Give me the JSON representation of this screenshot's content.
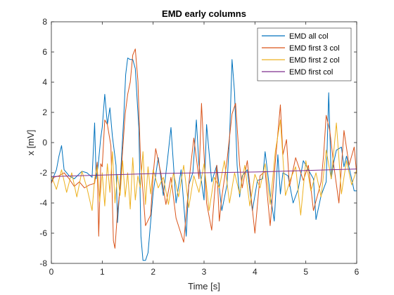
{
  "chart_data": {
    "type": "line",
    "title": "EMD early columns",
    "xlabel": "Time [s]",
    "ylabel": "x [mV]",
    "xlim": [
      0,
      6
    ],
    "ylim": [
      -8,
      8
    ],
    "xticks": [
      0,
      1,
      2,
      3,
      4,
      5,
      6
    ],
    "yticks": [
      -8,
      -6,
      -4,
      -2,
      0,
      2,
      4,
      6,
      8
    ],
    "xtick_labels": [
      "0",
      "1",
      "2",
      "3",
      "4",
      "5",
      "6"
    ],
    "ytick_labels": [
      "-8",
      "-6",
      "-4",
      "-2",
      "0",
      "2",
      "4",
      "6",
      "8"
    ],
    "grid": false,
    "legend_position": "top-right",
    "series": [
      {
        "name": "EMD all col",
        "color": "#0072BD",
        "x": [
          0,
          0.1,
          0.15,
          0.2,
          0.25,
          0.35,
          0.45,
          0.6,
          0.7,
          0.8,
          0.85,
          0.88,
          0.92,
          0.97,
          1.0,
          1.05,
          1.1,
          1.15,
          1.2,
          1.27,
          1.3,
          1.35,
          1.42,
          1.46,
          1.5,
          1.55,
          1.6,
          1.65,
          1.72,
          1.76,
          1.8,
          1.85,
          1.9,
          2.0,
          2.1,
          2.2,
          2.28,
          2.35,
          2.45,
          2.55,
          2.65,
          2.7,
          2.78,
          2.85,
          2.9,
          2.95,
          3.0,
          3.05,
          3.15,
          3.25,
          3.35,
          3.45,
          3.5,
          3.55,
          3.6,
          3.65,
          3.7,
          3.75,
          3.85,
          3.95,
          4.05,
          4.15,
          4.2,
          4.3,
          4.38,
          4.45,
          4.5,
          4.55,
          4.65,
          4.75,
          4.85,
          4.95,
          5.05,
          5.15,
          5.2,
          5.3,
          5.4,
          5.45,
          5.5,
          5.55,
          5.6,
          5.7,
          5.75,
          5.8,
          5.9,
          5.95,
          6.0
        ],
        "y": [
          -2.6,
          -1.8,
          -0.9,
          -0.2,
          -1.8,
          -2.2,
          -2.4,
          -1.9,
          -2.0,
          -2.3,
          1.3,
          -2.4,
          -1.5,
          0.3,
          1.0,
          3.2,
          1.2,
          2.3,
          0.4,
          -1.5,
          -5.3,
          -2.7,
          1.5,
          4.5,
          5.6,
          5.5,
          5.5,
          4.9,
          0.9,
          -6.2,
          -7.8,
          -7.8,
          -7.3,
          -3.3,
          -1.0,
          -3.5,
          -1.2,
          1.0,
          -4.0,
          -1.8,
          -6.2,
          -2.8,
          -2.0,
          1.5,
          -1.5,
          -2.6,
          -3.8,
          1.2,
          -2.6,
          -1.5,
          -4.5,
          -2.8,
          0.2,
          5.5,
          3.3,
          -1.5,
          -3.6,
          -2.2,
          -1.8,
          -4.5,
          -2.5,
          -2.4,
          -0.6,
          -3.4,
          -5.2,
          -0.8,
          -3.4,
          -2.0,
          -2.2,
          -4.0,
          -3.1,
          -1.2,
          -1.8,
          -2.4,
          -5.1,
          -3.5,
          -2.6,
          3.3,
          -2.4,
          -1.3,
          -0.5,
          -0.3,
          -1.6,
          -0.9,
          -2.4,
          -3.2,
          -3.2
        ]
      },
      {
        "name": "EMD first 3 col",
        "color": "#D95319",
        "x": [
          0,
          0.05,
          0.15,
          0.25,
          0.35,
          0.45,
          0.55,
          0.65,
          0.75,
          0.85,
          0.9,
          0.93,
          0.97,
          1.0,
          1.05,
          1.1,
          1.17,
          1.22,
          1.25,
          1.3,
          1.35,
          1.4,
          1.45,
          1.5,
          1.55,
          1.6,
          1.65,
          1.7,
          1.75,
          1.85,
          1.95,
          2.0,
          2.05,
          2.15,
          2.25,
          2.35,
          2.45,
          2.6,
          2.72,
          2.8,
          2.9,
          2.95,
          3.0,
          3.05,
          3.15,
          3.25,
          3.3,
          3.35,
          3.45,
          3.55,
          3.62,
          3.7,
          3.75,
          3.85,
          4.0,
          4.1,
          4.2,
          4.3,
          4.4,
          4.5,
          4.55,
          4.62,
          4.68,
          4.8,
          4.95,
          5.05,
          5.15,
          5.3,
          5.35,
          5.4,
          5.47,
          5.55,
          5.65,
          5.75,
          5.85,
          5.95,
          6.0
        ],
        "y": [
          -2.7,
          -2.3,
          -2.2,
          -2.0,
          -2.4,
          -2.9,
          -2.6,
          -3.0,
          -2.8,
          -2.7,
          -1.3,
          -6.2,
          -1.4,
          -1.6,
          1.5,
          1.2,
          -0.2,
          -6.5,
          -7.0,
          -4.6,
          -3.0,
          -0.5,
          1.9,
          3.2,
          4.0,
          5.8,
          6.2,
          4.1,
          -1.0,
          -5.5,
          -4.8,
          -2.1,
          -0.4,
          -2.0,
          -4.1,
          -2.3,
          -5.0,
          -6.6,
          -2.1,
          0.3,
          -2.4,
          2.6,
          -0.8,
          -4.0,
          -5.8,
          -1.5,
          -5.2,
          -3.6,
          -1.2,
          1.9,
          2.6,
          -1.5,
          -3.0,
          -1.2,
          -6.0,
          -2.2,
          -1.9,
          -5.5,
          -1.3,
          2.5,
          -0.8,
          0.2,
          -2.9,
          -1.0,
          -2.5,
          -1.5,
          -4.5,
          -2.6,
          -0.8,
          1.8,
          0.8,
          -1.5,
          -4.0,
          0.8,
          -1.5,
          -0.3,
          -2.1
        ]
      },
      {
        "name": "EMD first 2 col",
        "color": "#EDB120",
        "x": [
          0,
          0.1,
          0.2,
          0.3,
          0.4,
          0.5,
          0.6,
          0.7,
          0.8,
          0.85,
          0.9,
          0.95,
          1.0,
          1.05,
          1.1,
          1.15,
          1.2,
          1.25,
          1.3,
          1.35,
          1.4,
          1.45,
          1.5,
          1.55,
          1.6,
          1.65,
          1.7,
          1.75,
          1.8,
          1.85,
          1.9,
          1.95,
          2.0,
          2.1,
          2.2,
          2.3,
          2.4,
          2.5,
          2.6,
          2.7,
          2.8,
          2.9,
          3.0,
          3.1,
          3.2,
          3.3,
          3.4,
          3.5,
          3.6,
          3.7,
          3.8,
          3.9,
          4.0,
          4.1,
          4.2,
          4.3,
          4.4,
          4.5,
          4.6,
          4.7,
          4.8,
          4.9,
          5.0,
          5.1,
          5.2,
          5.3,
          5.4,
          5.5,
          5.6,
          5.7,
          5.8,
          5.9,
          6.0
        ],
        "y": [
          -2.2,
          -3.1,
          -1.8,
          -3.3,
          -2.0,
          -3.6,
          -1.9,
          -3.0,
          -4.5,
          -2.4,
          -1.6,
          -3.9,
          -2.0,
          -4.2,
          -1.4,
          -3.3,
          -0.6,
          -4.0,
          -2.1,
          -3.5,
          -1.2,
          -3.6,
          -2.0,
          -4.4,
          -1.0,
          -3.8,
          -2.2,
          -3.0,
          -0.6,
          -4.1,
          -1.6,
          -3.4,
          -1.8,
          -3.0,
          -2.3,
          -4.1,
          -2.0,
          -3.6,
          -1.5,
          -4.3,
          -2.2,
          -3.3,
          -1.4,
          -4.5,
          -2.3,
          -3.0,
          -1.2,
          -4.0,
          -2.0,
          -3.4,
          -1.5,
          -4.2,
          -2.1,
          -3.0,
          -1.4,
          -4.1,
          -0.6,
          1.5,
          -3.5,
          -2.4,
          -1.6,
          -4.8,
          -1.2,
          -3.2,
          -2.0,
          -3.6,
          -0.5,
          -2.4,
          1.3,
          -3.4,
          -1.2,
          -2.8,
          -1.8
        ]
      },
      {
        "name": "EMD first col",
        "color": "#7E2F8E",
        "x": [
          0,
          1,
          2,
          3,
          4,
          5,
          6
        ],
        "y": [
          -2.25,
          -2.15,
          -2.05,
          -2.0,
          -1.95,
          -1.85,
          -1.75
        ]
      }
    ]
  }
}
